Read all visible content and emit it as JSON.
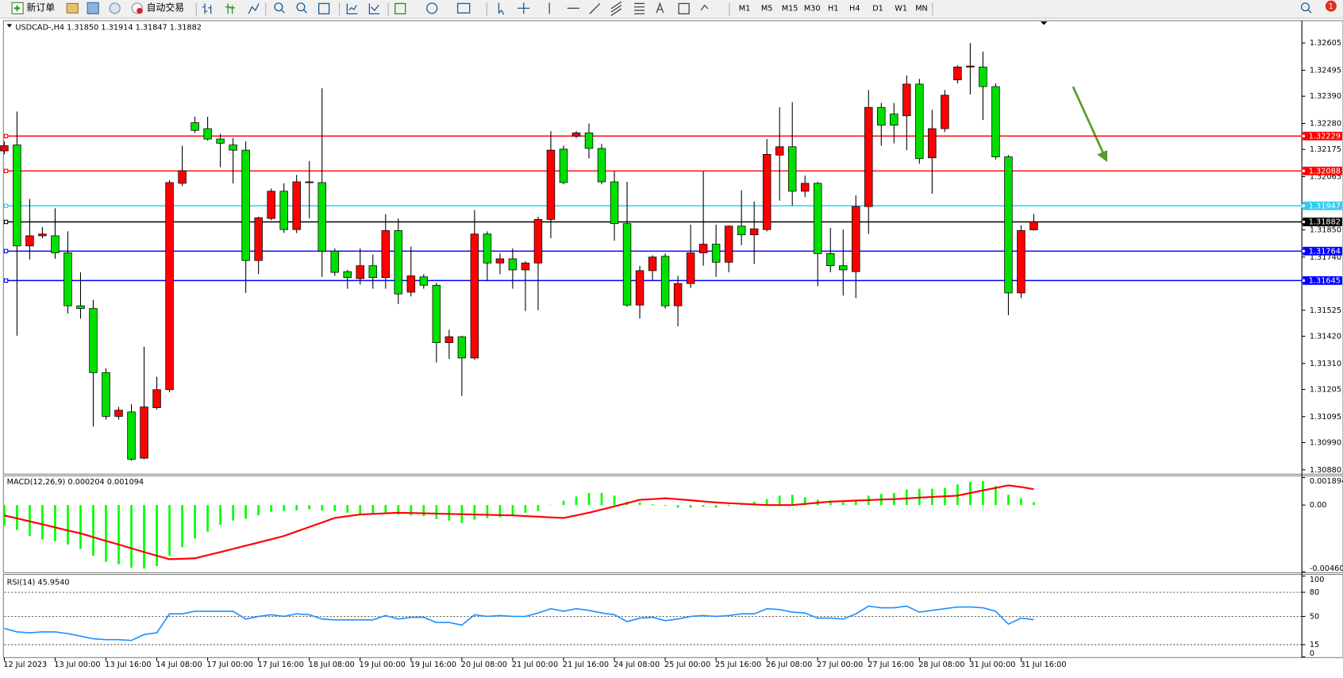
{
  "toolbar": {
    "new_order": "新订单",
    "auto_trading": "自动交易",
    "timeframes": [
      "M1",
      "M5",
      "M15",
      "M30",
      "H1",
      "H4",
      "D1",
      "W1",
      "MN"
    ],
    "alert_count": "1"
  },
  "chart_data": [
    {
      "type": "candlestick",
      "title": "USDCAD-,H4 1.31850 1.31914 1.31847 1.31882",
      "up_color": "#ff0000",
      "down_color": "#00e000",
      "categories": [
        "12 Jul 2023",
        null,
        null,
        null,
        "13 Jul 00:00",
        null,
        null,
        null,
        "13 Jul 16:00",
        null,
        null,
        null,
        "14 Jul 08:00",
        null,
        null,
        null,
        "17 Jul 00:00",
        null,
        null,
        null,
        "17 Jul 16:00",
        null,
        null,
        null,
        "18 Jul 08:00",
        null,
        null,
        null,
        "19 Jul 00:00",
        null,
        null,
        null,
        "19 Jul 16:00",
        null,
        null,
        null,
        "20 Jul 08:00",
        null,
        null,
        null,
        "21 Jul 00:00",
        null,
        null,
        null,
        "21 Jul 16:00",
        null,
        null,
        null,
        "24 Jul 08:00",
        null,
        null,
        null,
        "25 Jul 00:00",
        null,
        null,
        null,
        "25 Jul 16:00",
        null,
        null,
        null,
        "26 Jul 08:00",
        null,
        null,
        null,
        "27 Jul 00:00",
        null,
        null,
        null,
        "27 Jul 16:00",
        null,
        null,
        null,
        "28 Jul 08:00",
        null,
        null,
        null,
        "31 Jul 00:00",
        null,
        null,
        null,
        "31 Jul 16:00",
        null
      ],
      "open": [
        1.32169,
        1.32193,
        1.31785,
        1.31826,
        1.31826,
        1.31757,
        1.31543,
        1.31532,
        1.31273,
        1.31096,
        1.31114,
        1.30927,
        1.31131,
        1.31204,
        1.32038,
        1.32283,
        1.32259,
        1.32217,
        1.32193,
        1.32172,
        1.31726,
        1.31896,
        1.32006,
        1.31851,
        1.32041,
        1.32041,
        1.31764,
        1.31681,
        1.31653,
        1.31705,
        1.31657,
        1.31847,
        1.31598,
        1.3166,
        1.31626,
        1.31394,
        1.31418,
        1.31332,
        1.31833,
        1.31716,
        1.31733,
        1.31688,
        1.31716,
        1.31892,
        1.32176,
        1.32228,
        1.32242,
        1.32179,
        1.32044,
        1.31875,
        1.31546,
        1.31685,
        1.31743,
        1.31543,
        1.31633,
        1.31757,
        1.31792,
        1.31719,
        1.31865,
        1.3183,
        1.31851,
        1.32152,
        1.32186,
        1.32006,
        1.32038,
        1.31754,
        1.31705,
        1.31681,
        1.31944,
        1.32345,
        1.32318,
        1.32311,
        1.32439,
        1.32141,
        1.32259,
        1.32456,
        1.32508,
        1.32508,
        1.32429,
        1.32145,
        1.31595,
        1.3185
      ],
      "high": [
        1.32207,
        1.32328,
        1.31975,
        1.31861,
        1.31937,
        1.31844,
        1.31678,
        1.31567,
        1.3129,
        1.31134,
        1.31145,
        1.31377,
        1.31256,
        1.32051,
        1.3219,
        1.32307,
        1.32307,
        1.32238,
        1.32221,
        1.32207,
        1.31903,
        1.32017,
        1.32038,
        1.32072,
        1.32128,
        1.32422,
        1.31775,
        1.31688,
        1.31775,
        1.3175,
        1.31913,
        1.31896,
        1.31782,
        1.31671,
        1.31636,
        1.31446,
        1.31422,
        1.3193,
        1.31844,
        1.31754,
        1.31775,
        1.31723,
        1.31903,
        1.32249,
        1.3219,
        1.32249,
        1.3228,
        1.32197,
        1.32086,
        1.32044,
        1.31705,
        1.31747,
        1.31754,
        1.31664,
        1.31871,
        1.32086,
        1.31871,
        1.31868,
        1.3201,
        1.31965,
        1.32217,
        1.32345,
        1.32366,
        1.32069,
        1.32044,
        1.31858,
        1.31851,
        1.31989,
        1.32415,
        1.32363,
        1.32363,
        1.32474,
        1.3246,
        1.32335,
        1.32415,
        1.32515,
        1.32605,
        1.3257,
        1.32442,
        1.32152,
        1.31868,
        1.31914
      ],
      "low": [
        1.32155,
        1.31422,
        1.3173,
        1.31816,
        1.31733,
        1.31512,
        1.31491,
        1.31055,
        1.31083,
        1.31083,
        1.30917,
        1.30923,
        1.31124,
        1.31193,
        1.32027,
        1.32242,
        1.32211,
        1.32103,
        1.32038,
        1.31595,
        1.31671,
        1.31889,
        1.31837,
        1.31837,
        1.31896,
        1.3166,
        1.31664,
        1.31612,
        1.31629,
        1.31612,
        1.31612,
        1.3155,
        1.31581,
        1.31612,
        1.31314,
        1.31328,
        1.31179,
        1.31325,
        1.31643,
        1.31671,
        1.31612,
        1.31522,
        1.31525,
        1.31816,
        1.32034,
        1.32221,
        1.32138,
        1.32034,
        1.31806,
        1.31539,
        1.31491,
        1.31647,
        1.31532,
        1.3146,
        1.31615,
        1.31705,
        1.3166,
        1.31678,
        1.31788,
        1.31712,
        1.31844,
        1.31968,
        1.31948,
        1.31982,
        1.31622,
        1.31678,
        1.31584,
        1.31574,
        1.31833,
        1.3219,
        1.322,
        1.32172,
        1.32117,
        1.31996,
        1.32245,
        1.32442,
        1.32397,
        1.32294,
        1.32134,
        1.31505,
        1.31574,
        1.31847
      ],
      "close": [
        1.3219,
        1.31785,
        1.31826,
        1.31833,
        1.31757,
        1.31543,
        1.31532,
        1.31273,
        1.31096,
        1.31121,
        1.30923,
        1.31134,
        1.31204,
        1.32041,
        1.32089,
        1.32252,
        1.32217,
        1.322,
        1.32172,
        1.31726,
        1.31899,
        1.32006,
        1.31851,
        1.32044,
        1.32044,
        1.31764,
        1.31678,
        1.31657,
        1.31705,
        1.31657,
        1.31847,
        1.31591,
        1.31664,
        1.31626,
        1.31394,
        1.31418,
        1.31332,
        1.31833,
        1.31716,
        1.31733,
        1.31688,
        1.31716,
        1.31892,
        1.32172,
        1.32041,
        1.32242,
        1.32179,
        1.32044,
        1.31875,
        1.31546,
        1.31685,
        1.3174,
        1.31543,
        1.31633,
        1.31757,
        1.31792,
        1.31719,
        1.31865,
        1.3183,
        1.31854,
        1.32155,
        1.32186,
        1.32006,
        1.32038,
        1.31754,
        1.31705,
        1.31688,
        1.31944,
        1.32345,
        1.32273,
        1.32273,
        1.32439,
        1.32138,
        1.32259,
        1.32394,
        1.32508,
        1.32512,
        1.32429,
        1.32145,
        1.31595,
        1.31847,
        1.31882
      ],
      "levels": [
        {
          "value": 1.32229,
          "color": "#ff0000"
        },
        {
          "value": 1.32088,
          "color": "#ff0000"
        },
        {
          "value": 1.31947,
          "color": "#33ccee"
        },
        {
          "value": 1.31882,
          "color": "#000000"
        },
        {
          "value": 1.31764,
          "color": "#0000ff"
        },
        {
          "value": 1.31645,
          "color": "#0000ff"
        }
      ],
      "ylim": [
        1.30866,
        1.32685
      ],
      "yticks": [
        1.32605,
        1.32495,
        {
          "value": 1.3239,
          "label": "1.32390"
        },
        {
          "value": 1.3228,
          "label": "1.32280"
        },
        1.32175,
        1.32065,
        {
          "value": 1.3185,
          "label": "1.31850"
        },
        {
          "value": 1.3174,
          "label": "1.31740"
        },
        1.31525,
        {
          "value": 1.3142,
          "label": "1.31420"
        },
        {
          "value": 1.3131,
          "label": "1.31310"
        },
        1.31205,
        1.31095,
        {
          "value": 1.3099,
          "label": "1.30990"
        },
        {
          "value": 1.3088,
          "label": "1.30880"
        }
      ]
    },
    {
      "type": "macd",
      "title": "MACD(12,26,9) 0.000204 0.001094",
      "color": "#00ff00",
      "signal_color": "#ff0000",
      "values": [
        -0.00142,
        -0.00172,
        -0.00213,
        -0.00237,
        -0.00249,
        -0.00272,
        -0.00302,
        -0.00349,
        -0.00391,
        -0.00408,
        -0.00432,
        -0.00438,
        -0.0042,
        -0.00349,
        -0.0029,
        -0.00231,
        -0.00184,
        -0.00136,
        -0.00107,
        -0.00095,
        -0.00071,
        -0.00047,
        -0.00041,
        -0.00036,
        -0.0003,
        -0.00036,
        -0.00041,
        -0.00053,
        -0.00059,
        -0.00065,
        -0.00053,
        -0.00065,
        -0.00071,
        -0.00077,
        -0.00095,
        -0.00107,
        -0.00124,
        -0.00101,
        -0.00089,
        -0.00083,
        -0.00071,
        -0.00053,
        -0.00041,
        2e-05,
        0.0003,
        0.00059,
        0.00083,
        0.00083,
        0.00065,
        0.00024,
        0.00018,
        6e-05,
        -6e-05,
        -0.00018,
        -0.00018,
        -0.00012,
        -0.00018,
        -6e-05,
        6e-05,
        0.00024,
        0.00041,
        0.00065,
        0.00071,
        0.00053,
        0.00036,
        0.0003,
        0.00018,
        0.0003,
        0.00065,
        0.00077,
        0.00083,
        0.00107,
        0.00112,
        0.00112,
        0.00118,
        0.00142,
        0.0016,
        0.00166,
        0.0013,
        0.00071,
        0.00047,
        0.000204
      ],
      "signal": [
        -0.00071,
        -0.00092,
        -0.00112,
        -0.00133,
        -0.00154,
        -0.00175,
        -0.00195,
        -0.00221,
        -0.00247,
        -0.00272,
        -0.00298,
        -0.00324,
        -0.00349,
        -0.00373,
        -0.0037,
        -0.00367,
        -0.00345,
        -0.00324,
        -0.00302,
        -0.0028,
        -0.00258,
        -0.00236,
        -0.00213,
        -0.00182,
        -0.00151,
        -0.0012,
        -0.00089,
        -0.00077,
        -0.00065,
        -0.00061,
        -0.00057,
        -0.00053,
        -0.00055,
        -0.00057,
        -0.00059,
        -0.00061,
        -0.00063,
        -0.00065,
        -0.00067,
        -0.00069,
        -0.00071,
        -0.00076,
        -0.0008,
        -0.00085,
        -0.00089,
        -0.00071,
        -0.00053,
        -0.00031,
        -9e-05,
        0.00013,
        0.00036,
        0.00041,
        0.00047,
        0.0004,
        0.00033,
        0.00025,
        0.00018,
        0.00013,
        9e-05,
        4e-05,
        0.0,
        0.0,
        0.0,
        8e-05,
        0.00016,
        0.00024,
        0.00027,
        0.00031,
        0.00034,
        0.00038,
        0.00041,
        0.00046,
        0.00051,
        0.00056,
        0.0006,
        0.00065,
        0.00083,
        0.00101,
        0.00118,
        0.00136,
        0.00124,
        0.001094
      ],
      "ylim": [
        -0.004603,
        0.001894
      ],
      "yticks": [
        0.001894,
        {
          "value": 0,
          "label": "0.00"
        },
        -0.004603
      ]
    },
    {
      "type": "line",
      "title": "RSI(14) 45.9540",
      "color": "#1e90ff",
      "values": [
        35.1,
        30.8,
        29.7,
        30.8,
        30.8,
        28.7,
        25.5,
        22.3,
        21.2,
        21.2,
        20.2,
        27.6,
        29.7,
        53.2,
        53.2,
        56.4,
        56.4,
        56.4,
        56.4,
        46.8,
        50.0,
        52.1,
        50.0,
        53.2,
        52.1,
        46.8,
        45.7,
        45.7,
        45.7,
        45.7,
        51.1,
        46.8,
        48.9,
        48.9,
        42.5,
        42.5,
        39.3,
        52.1,
        50.0,
        51.1,
        50.0,
        50.0,
        54.3,
        59.6,
        56.4,
        59.6,
        57.5,
        54.3,
        52.1,
        43.6,
        47.9,
        48.9,
        44.7,
        46.8,
        50.0,
        51.1,
        50.0,
        51.1,
        53.2,
        53.2,
        59.6,
        58.5,
        55.3,
        54.3,
        47.9,
        47.9,
        46.8,
        53.2,
        62.8,
        60.7,
        60.7,
        62.8,
        55.3,
        57.5,
        59.6,
        61.7,
        61.7,
        60.7,
        56.4,
        40.4,
        47.9,
        45.954
      ],
      "ylim": [
        0,
        100
      ],
      "yticks": [
        100,
        80,
        50,
        15,
        0
      ],
      "grid": true
    }
  ]
}
